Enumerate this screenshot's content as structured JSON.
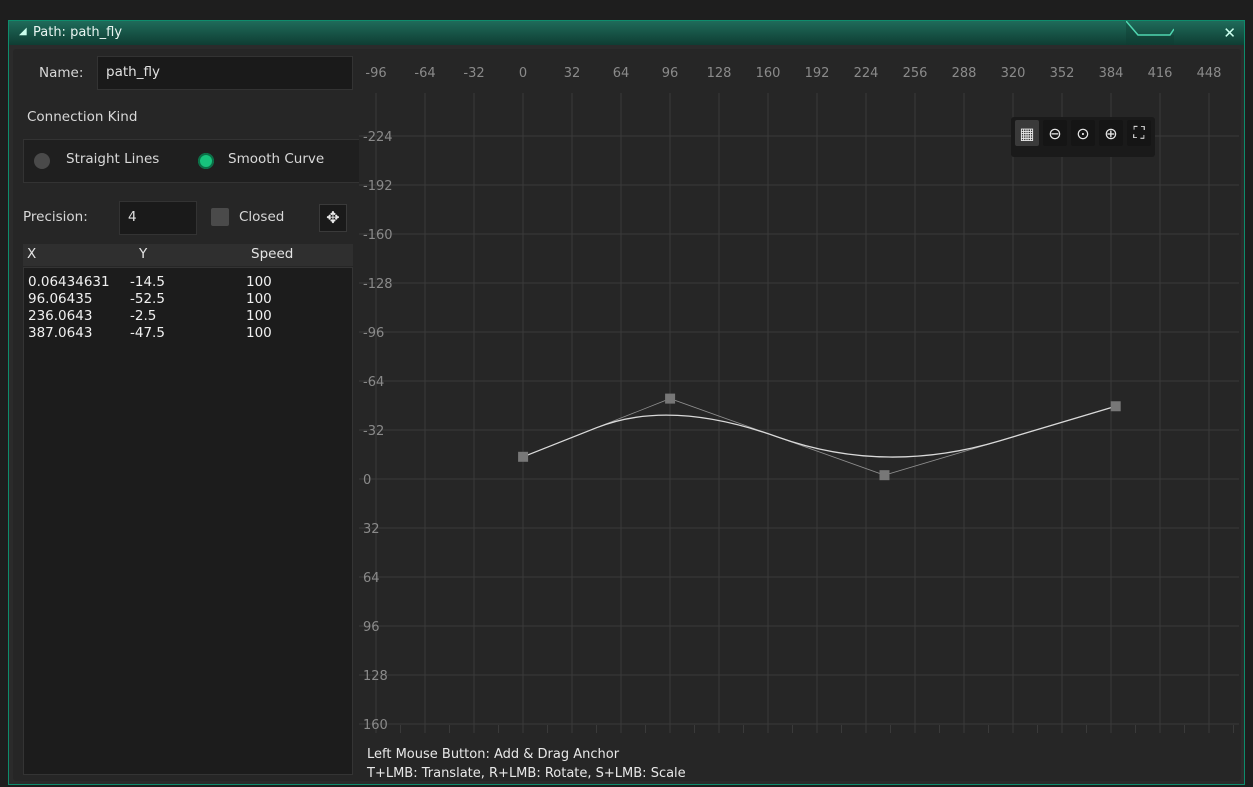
{
  "window": {
    "title": "Path: path_fly",
    "close_glyph": "✕"
  },
  "left": {
    "name_label": "Name:",
    "name_value": "path_fly",
    "connection_kind_label": "Connection Kind",
    "radio_straight": "Straight Lines",
    "radio_smooth": "Smooth Curve",
    "selected_connection": "Smooth Curve",
    "precision_label": "Precision:",
    "precision_value": "4",
    "closed_label": "Closed",
    "closed_checked": false,
    "columns": [
      "X",
      "Y",
      "Speed"
    ],
    "points": [
      {
        "x": "0.06434631",
        "y": "-14.5",
        "speed": "100"
      },
      {
        "x": "96.06435",
        "y": "-52.5",
        "speed": "100"
      },
      {
        "x": "236.0643",
        "y": "-2.5",
        "speed": "100"
      },
      {
        "x": "387.0643",
        "y": "-47.5",
        "speed": "100"
      }
    ]
  },
  "editor": {
    "x_ticks": [
      "-96",
      "-64",
      "-32",
      "0",
      "32",
      "64",
      "96",
      "128",
      "160",
      "192",
      "224",
      "256",
      "288",
      "320",
      "352",
      "384",
      "416",
      "448"
    ],
    "y_ticks": [
      "-224",
      "-192",
      "-160",
      "-128",
      "-96",
      "-64",
      "-32",
      "0",
      "32",
      "64",
      "96",
      "128",
      "160"
    ],
    "anchors": [
      [
        0.06434631,
        -14.5
      ],
      [
        96.06435,
        -52.5
      ],
      [
        236.0643,
        -2.5
      ],
      [
        387.0643,
        -47.5
      ]
    ],
    "status_line1": "Left Mouse Button: Add & Drag Anchor",
    "status_line2": "T+LMB: Translate, R+LMB: Rotate, S+LMB: Scale",
    "toolbar_icons": [
      "grid-icon",
      "zoom-out-icon",
      "zoom-reset-icon",
      "zoom-in-icon",
      "fullscreen-icon"
    ]
  },
  "colors": {
    "accent": "#17c27c",
    "title_bar": "#1f6b5a",
    "grid": "#3a3a3a"
  }
}
